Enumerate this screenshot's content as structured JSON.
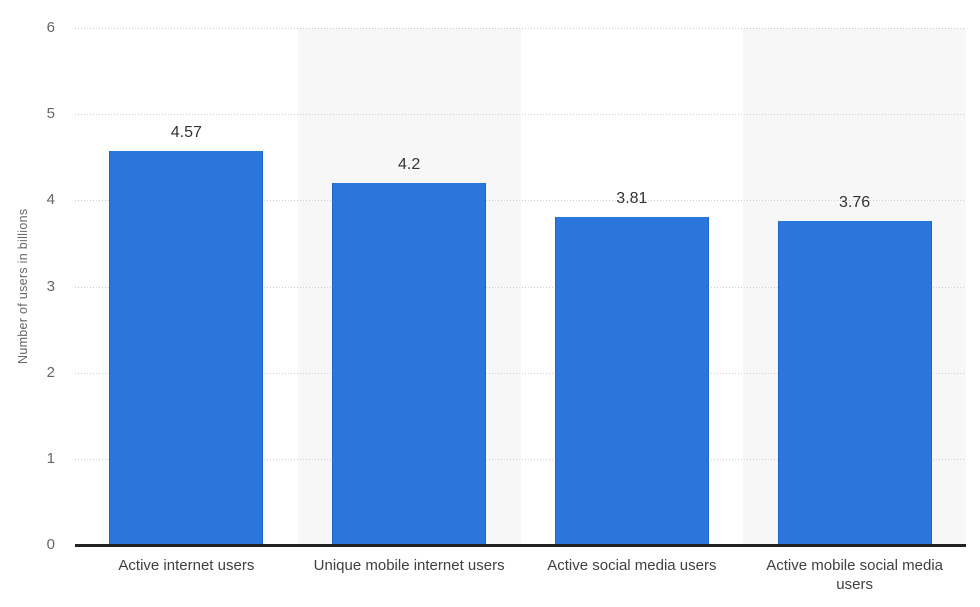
{
  "chart_data": {
    "type": "bar",
    "categories": [
      "Active internet users",
      "Unique mobile internet users",
      "Active social media users",
      "Active mobile social media users"
    ],
    "values": [
      4.57,
      4.2,
      3.81,
      3.76
    ],
    "value_labels": [
      "4.57",
      "4.2",
      "3.81",
      "3.76"
    ],
    "ylabel": "Number of users in billions",
    "ylim": [
      0,
      6
    ],
    "yticks": [
      0,
      1,
      2,
      3,
      4,
      5,
      6
    ],
    "grid": "horizontal-dotted",
    "layout_hint": "alternating light column bands behind every second category",
    "colors": {
      "bar": "#2B76DC",
      "band": "#F7F7F7",
      "gridline": "#CCCCCC",
      "axis_line": "#222222",
      "tick_label": "#666666",
      "value_label": "#333333",
      "category_label": "#404040",
      "axis_title": "#666666",
      "background": "#FFFFFF"
    }
  }
}
